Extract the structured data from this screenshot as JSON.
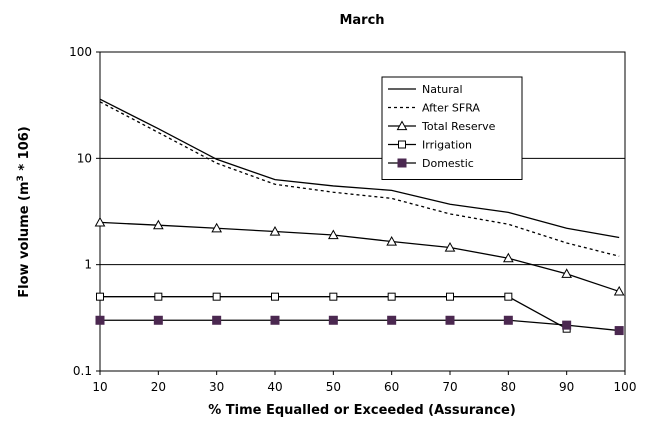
{
  "chart_data": {
    "type": "line",
    "title": "March",
    "xlabel": "% Time Equalled or Exceeded (Assurance)",
    "ylabel_main": "Flow volume (m",
    "ylabel_sup": "3",
    "ylabel_tail": " * 106)",
    "x_scale": "linear",
    "y_scale": "log",
    "xlim": [
      10,
      100
    ],
    "ylim": [
      0.1,
      100
    ],
    "x_ticks": [
      10,
      20,
      30,
      40,
      50,
      60,
      70,
      80,
      90,
      100
    ],
    "x_tick_labels": [
      "10",
      "20",
      "30",
      "40",
      "50",
      "60",
      "70",
      "80",
      "90",
      "100"
    ],
    "y_ticks": [
      0.1,
      1,
      10,
      100
    ],
    "y_tick_labels": [
      "0.1",
      "1",
      "10",
      "100"
    ],
    "grid": "horizontal major lines",
    "legend_position": "top-right",
    "series": [
      {
        "name": "Natural",
        "style": "solid",
        "marker": "none",
        "color": "#000000",
        "x": [
          10,
          20,
          30,
          40,
          50,
          60,
          70,
          80,
          90,
          99
        ],
        "y": [
          36,
          19,
          9.8,
          6.3,
          5.5,
          5.0,
          3.7,
          3.1,
          2.2,
          1.8
        ]
      },
      {
        "name": "After SFRA",
        "style": "dotted",
        "marker": "none",
        "color": "#000000",
        "x": [
          10,
          20,
          30,
          40,
          50,
          60,
          70,
          80,
          90,
          99
        ],
        "y": [
          34,
          17.5,
          9.0,
          5.7,
          4.8,
          4.2,
          3.0,
          2.4,
          1.6,
          1.2
        ]
      },
      {
        "name": "Total Reserve",
        "style": "solid",
        "marker": "triangle-open",
        "color": "#000000",
        "x": [
          10,
          20,
          30,
          40,
          50,
          60,
          70,
          80,
          90,
          99
        ],
        "y": [
          2.5,
          2.35,
          2.2,
          2.05,
          1.9,
          1.65,
          1.45,
          1.15,
          0.82,
          0.56
        ]
      },
      {
        "name": "Irrigation",
        "style": "solid",
        "marker": "square-open",
        "color": "#000000",
        "x": [
          10,
          20,
          30,
          40,
          50,
          60,
          70,
          80,
          90
        ],
        "y": [
          0.5,
          0.5,
          0.5,
          0.5,
          0.5,
          0.5,
          0.5,
          0.5,
          0.25
        ]
      },
      {
        "name": "Domestic",
        "style": "solid",
        "marker": "square-filled",
        "color": "#000000",
        "marker_color": "#4b2850",
        "x": [
          10,
          20,
          30,
          40,
          50,
          60,
          70,
          80,
          90,
          99
        ],
        "y": [
          0.3,
          0.3,
          0.3,
          0.3,
          0.3,
          0.3,
          0.3,
          0.3,
          0.27,
          0.24
        ]
      }
    ]
  }
}
